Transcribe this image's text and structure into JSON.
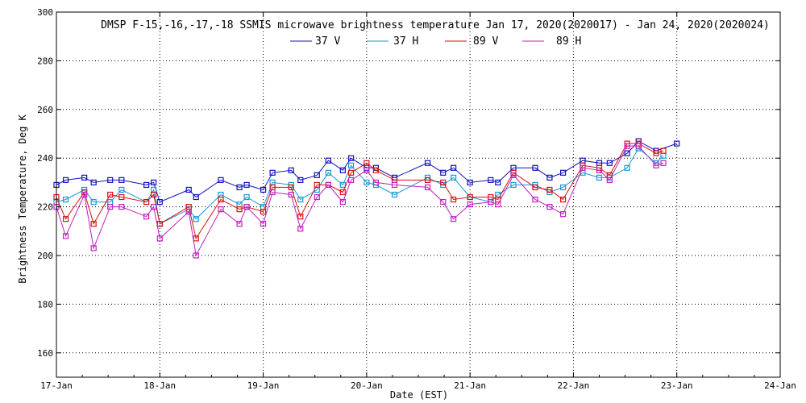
{
  "chart_data": {
    "type": "line",
    "title": "DMSP F-15,-16,-17,-18 SSMIS microwave brightness temperature Jan 17, 2020(2020017) - Jan 24, 2020(2020024)",
    "xlabel": "Date (EST)",
    "ylabel": "Brightness Temperature, Deg K",
    "xlim": [
      0,
      7
    ],
    "ylim": [
      150,
      300
    ],
    "yticks": [
      160,
      180,
      200,
      220,
      240,
      260,
      280,
      300
    ],
    "xtick_labels": [
      "17-Jan",
      "18-Jan",
      "19-Jan",
      "20-Jan",
      "21-Jan",
      "22-Jan",
      "23-Jan",
      "24-Jan"
    ],
    "grid": true,
    "legend_position": "top-center",
    "x_units": "days since 17-Jan 00:00 EST",
    "series": [
      {
        "name": "37 V",
        "color": "#1010c0",
        "x": [
          0.0,
          0.09,
          0.27,
          0.36,
          0.52,
          0.63,
          0.87,
          0.94,
          1.0,
          1.28,
          1.35,
          1.59,
          1.77,
          1.84,
          2.0,
          2.09,
          2.27,
          2.36,
          2.52,
          2.63,
          2.77,
          2.85,
          3.0,
          3.09,
          3.27,
          3.59,
          3.74,
          3.84,
          4.0,
          4.2,
          4.27,
          4.42,
          4.63,
          4.77,
          4.9,
          5.09,
          5.25,
          5.35,
          5.52,
          5.63,
          5.8,
          6.0
        ],
        "values": [
          229,
          231,
          232,
          230,
          231,
          231,
          229,
          230,
          222,
          227,
          224,
          231,
          228,
          229,
          227,
          234,
          235,
          231,
          233,
          239,
          235,
          240,
          236,
          236,
          232,
          238,
          234,
          236,
          230,
          231,
          230,
          236,
          236,
          232,
          234,
          239,
          238,
          238,
          242,
          247,
          243,
          246
        ]
      },
      {
        "name": "37 H",
        "color": "#1a9ad8",
        "x": [
          0.0,
          0.09,
          0.27,
          0.36,
          0.52,
          0.63,
          0.87,
          0.94,
          1.0,
          1.28,
          1.35,
          1.59,
          1.77,
          1.84,
          2.0,
          2.09,
          2.27,
          2.36,
          2.52,
          2.63,
          2.77,
          2.85,
          3.0,
          3.09,
          3.27,
          3.59,
          3.74,
          3.84,
          4.0,
          4.2,
          4.27,
          4.42,
          4.63,
          4.77,
          4.9,
          5.09,
          5.25,
          5.35,
          5.52,
          5.63,
          5.8,
          5.87
        ],
        "values": [
          222,
          223,
          227,
          222,
          222,
          227,
          222,
          227,
          213,
          219,
          215,
          225,
          221,
          224,
          220,
          230,
          229,
          223,
          227,
          234,
          229,
          237,
          230,
          229,
          225,
          232,
          229,
          232,
          224,
          222,
          225,
          229,
          229,
          226,
          228,
          234,
          232,
          232,
          236,
          244,
          238,
          241
        ]
      },
      {
        "name": "89 V",
        "color": "#d81010",
        "x": [
          0.0,
          0.09,
          0.27,
          0.36,
          0.52,
          0.63,
          0.87,
          0.94,
          1.0,
          1.28,
          1.35,
          1.59,
          1.77,
          1.84,
          2.0,
          2.09,
          2.27,
          2.36,
          2.52,
          2.63,
          2.77,
          2.85,
          3.0,
          3.09,
          3.27,
          3.59,
          3.74,
          3.84,
          4.0,
          4.2,
          4.27,
          4.42,
          4.63,
          4.77,
          4.9,
          5.09,
          5.25,
          5.35,
          5.52,
          5.63,
          5.8,
          5.87
        ],
        "values": [
          224,
          215,
          226,
          213,
          225,
          224,
          222,
          225,
          213,
          220,
          207,
          223,
          219,
          220,
          218,
          228,
          228,
          216,
          229,
          229,
          226,
          234,
          238,
          235,
          231,
          231,
          230,
          223,
          224,
          224,
          223,
          234,
          228,
          227,
          223,
          237,
          236,
          233,
          246,
          246,
          242,
          243
        ]
      },
      {
        "name": "89 H",
        "color": "#c020c0",
        "x": [
          0.0,
          0.09,
          0.27,
          0.36,
          0.52,
          0.63,
          0.87,
          0.94,
          1.0,
          1.28,
          1.35,
          1.59,
          1.77,
          1.84,
          2.0,
          2.09,
          2.27,
          2.36,
          2.52,
          2.63,
          2.77,
          2.85,
          3.0,
          3.09,
          3.27,
          3.59,
          3.74,
          3.84,
          4.0,
          4.2,
          4.27,
          4.42,
          4.63,
          4.77,
          4.9,
          5.09,
          5.25,
          5.35,
          5.52,
          5.63,
          5.8,
          5.87
        ],
        "values": [
          220,
          208,
          225,
          203,
          220,
          220,
          216,
          220,
          207,
          218,
          200,
          219,
          213,
          220,
          213,
          226,
          225,
          211,
          224,
          229,
          222,
          231,
          235,
          230,
          229,
          228,
          222,
          215,
          221,
          222,
          221,
          233,
          223,
          220,
          217,
          236,
          235,
          231,
          245,
          245,
          237,
          238
        ]
      }
    ]
  }
}
